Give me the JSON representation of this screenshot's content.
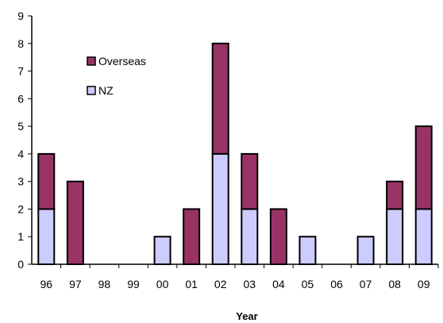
{
  "chart_data": {
    "type": "bar",
    "stacked": true,
    "categories": [
      "96",
      "97",
      "98",
      "99",
      "00",
      "01",
      "02",
      "03",
      "04",
      "05",
      "06",
      "07",
      "08",
      "09"
    ],
    "series": [
      {
        "name": "NZ",
        "values": [
          2,
          0,
          0,
          0,
          1,
          0,
          4,
          2,
          0,
          1,
          0,
          1,
          2,
          2
        ],
        "color": "#ccccff"
      },
      {
        "name": "Overseas",
        "values": [
          2,
          3,
          0,
          0,
          0,
          2,
          4,
          2,
          2,
          0,
          0,
          0,
          1,
          3
        ],
        "color": "#993366"
      }
    ],
    "title": "",
    "xlabel": "Year",
    "ylabel": "",
    "ylim": [
      0,
      9
    ],
    "yticks": [
      0,
      1,
      2,
      3,
      4,
      5,
      6,
      7,
      8,
      9
    ],
    "grid": false,
    "legend": {
      "position": "top-left",
      "order": [
        "Overseas",
        "NZ"
      ]
    }
  }
}
